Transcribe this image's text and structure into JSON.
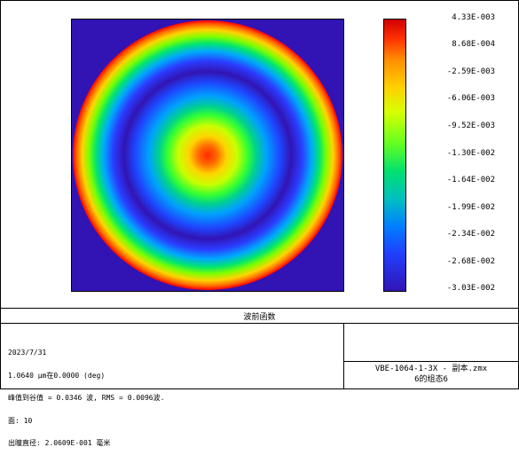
{
  "legend": {
    "ticks": [
      "4.33E-003",
      "8.68E-004",
      "-2.59E-003",
      "-6.06E-003",
      "-9.52E-003",
      "-1.30E-002",
      "-1.64E-002",
      "-1.99E-002",
      "-2.34E-002",
      "-2.68E-002",
      "-3.03E-002"
    ]
  },
  "caption": {
    "title": "波前函数"
  },
  "info": {
    "lines": [
      "2023/7/31",
      "1.0640 µm在0.0000 (deg)",
      "峰值到谷值 = 0.0346 波, RMS = 0.0096波.",
      "面: 10",
      "出瞳直径: 2.0609E-001 毫米"
    ]
  },
  "file": {
    "name": "VBE-1064-1-3X - 副本.zmx",
    "config": "6的组态6"
  }
}
